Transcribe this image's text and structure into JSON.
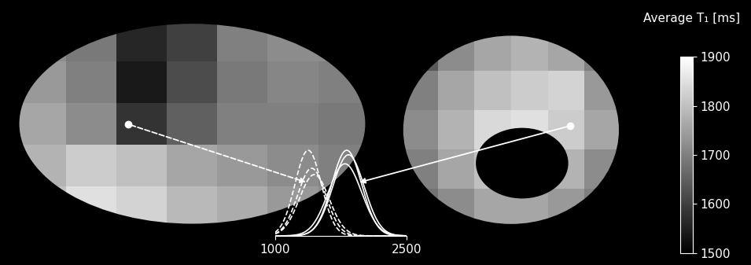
{
  "colorbar": {
    "label": "Average T₁ [ms]",
    "range": [
      1500,
      1900
    ],
    "ticks": [
      1500,
      1600,
      1700,
      1800,
      1900
    ]
  },
  "lateral_surface": {
    "cells": [
      [
        1720,
        1690,
        1560,
        1600,
        1700,
        1720,
        1720
      ],
      [
        1740,
        1700,
        1540,
        1620,
        1690,
        1710,
        1700
      ],
      [
        1760,
        1720,
        1580,
        1650,
        1700,
        1700,
        1690
      ],
      [
        1780,
        1820,
        1800,
        1760,
        1740,
        1720,
        1700
      ],
      [
        1800,
        1850,
        1830,
        1790,
        1770,
        1740,
        1720
      ]
    ]
  },
  "medial_surface": {
    "cells": [
      [
        1640,
        1720,
        1760,
        1780,
        1760,
        1700
      ],
      [
        1700,
        1760,
        1800,
        1820,
        1830,
        1740
      ],
      [
        1720,
        1780,
        1840,
        1850,
        1820,
        1760
      ],
      [
        1700,
        1760,
        1800,
        1800,
        1780,
        1720
      ],
      [
        1680,
        1720,
        1760,
        1760,
        1740,
        1700
      ]
    ]
  },
  "chart_data": {
    "type": "line",
    "xlim": [
      1000,
      2500
    ],
    "xticks": [
      1000,
      2500
    ],
    "ylim": [
      0,
      1
    ],
    "tick_labels": "x",
    "series": [
      {
        "color": "#ffffff",
        "line_style": "dashed",
        "mean": 1380,
        "sd": 150,
        "peak": 0.95
      },
      {
        "color": "#ffffff",
        "line_style": "dashed",
        "mean": 1420,
        "sd": 160,
        "peak": 0.75
      },
      {
        "color": "#ffffff",
        "line_style": "dashed",
        "mean": 1450,
        "sd": 170,
        "peak": 0.68
      },
      {
        "color": "#ffffff",
        "line_style": "solid",
        "mean": 1820,
        "sd": 170,
        "peak": 0.95
      },
      {
        "color": "#ffffff",
        "line_style": "solid",
        "mean": 1840,
        "sd": 180,
        "peak": 0.9
      },
      {
        "color": "#ffffff",
        "line_style": "solid",
        "mean": 1800,
        "sd": 190,
        "peak": 0.8
      }
    ]
  }
}
